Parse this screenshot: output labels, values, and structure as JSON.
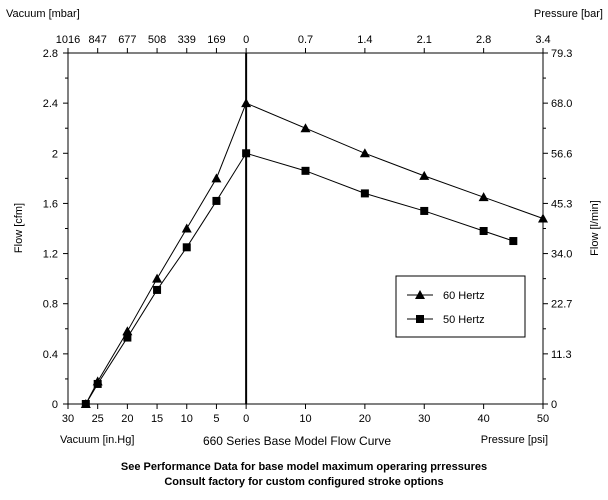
{
  "chart_data": {
    "type": "line",
    "title": "660 Series Base Model  Flow Curve",
    "notes": [
      "See Performance Data for base model maximum operaring prressures",
      "Consult factory for custom configured stroke options"
    ],
    "x_axis": {
      "vacuum_label": "Vacuum [in.Hg]",
      "pressure_label": "Pressure [psi]",
      "range": [
        -30,
        50
      ],
      "tick_values": [
        -30,
        -25,
        -20,
        -15,
        -10,
        -5,
        0,
        10,
        20,
        30,
        40,
        50
      ],
      "tick_labels": [
        "30",
        "25",
        "20",
        "15",
        "10",
        "5",
        "0",
        "10",
        "20",
        "30",
        "40",
        "50"
      ]
    },
    "top_axis": {
      "vacuum_label": "Vacuum [mbar]",
      "pressure_label": "Pressure [bar]",
      "tick_labels": [
        "1016",
        "847",
        "677",
        "508",
        "339",
        "169",
        "0",
        "0.7",
        "1.4",
        "2.1",
        "2.8",
        "3.4"
      ]
    },
    "y_axis": {
      "label": "Flow [cfm]",
      "range": [
        0,
        2.8
      ],
      "tick_values": [
        0,
        0.4,
        0.8,
        1.2,
        1.6,
        2,
        2.4,
        2.8
      ],
      "tick_labels": [
        "0",
        "0.4",
        "0.8",
        "1.2",
        "1.6",
        "2",
        "2.4",
        "2.8"
      ]
    },
    "y2_axis": {
      "label": "Flow [l/min]",
      "tick_labels": [
        "0",
        "11.3",
        "22.7",
        "34.0",
        "45.3",
        "56.6",
        "68.0",
        "79.3"
      ]
    },
    "grid": false,
    "legend_position": "right-center",
    "series": [
      {
        "name": "60 Hertz",
        "marker": "triangle",
        "color": "#000000",
        "points": [
          [
            -27,
            0
          ],
          [
            -25,
            0.18
          ],
          [
            -20,
            0.58
          ],
          [
            -15,
            1.0
          ],
          [
            -10,
            1.4
          ],
          [
            -5,
            1.8
          ],
          [
            0,
            2.4
          ],
          [
            10,
            2.2
          ],
          [
            20,
            2.0
          ],
          [
            30,
            1.82
          ],
          [
            40,
            1.65
          ],
          [
            50,
            1.48
          ]
        ]
      },
      {
        "name": "50 Hertz",
        "marker": "square",
        "color": "#000000",
        "points": [
          [
            -27,
            0
          ],
          [
            -25,
            0.16
          ],
          [
            -20,
            0.53
          ],
          [
            -15,
            0.91
          ],
          [
            -10,
            1.25
          ],
          [
            -5,
            1.62
          ],
          [
            0,
            2.0
          ],
          [
            10,
            1.86
          ],
          [
            20,
            1.68
          ],
          [
            30,
            1.54
          ],
          [
            40,
            1.38
          ],
          [
            45,
            1.3
          ]
        ]
      }
    ]
  }
}
